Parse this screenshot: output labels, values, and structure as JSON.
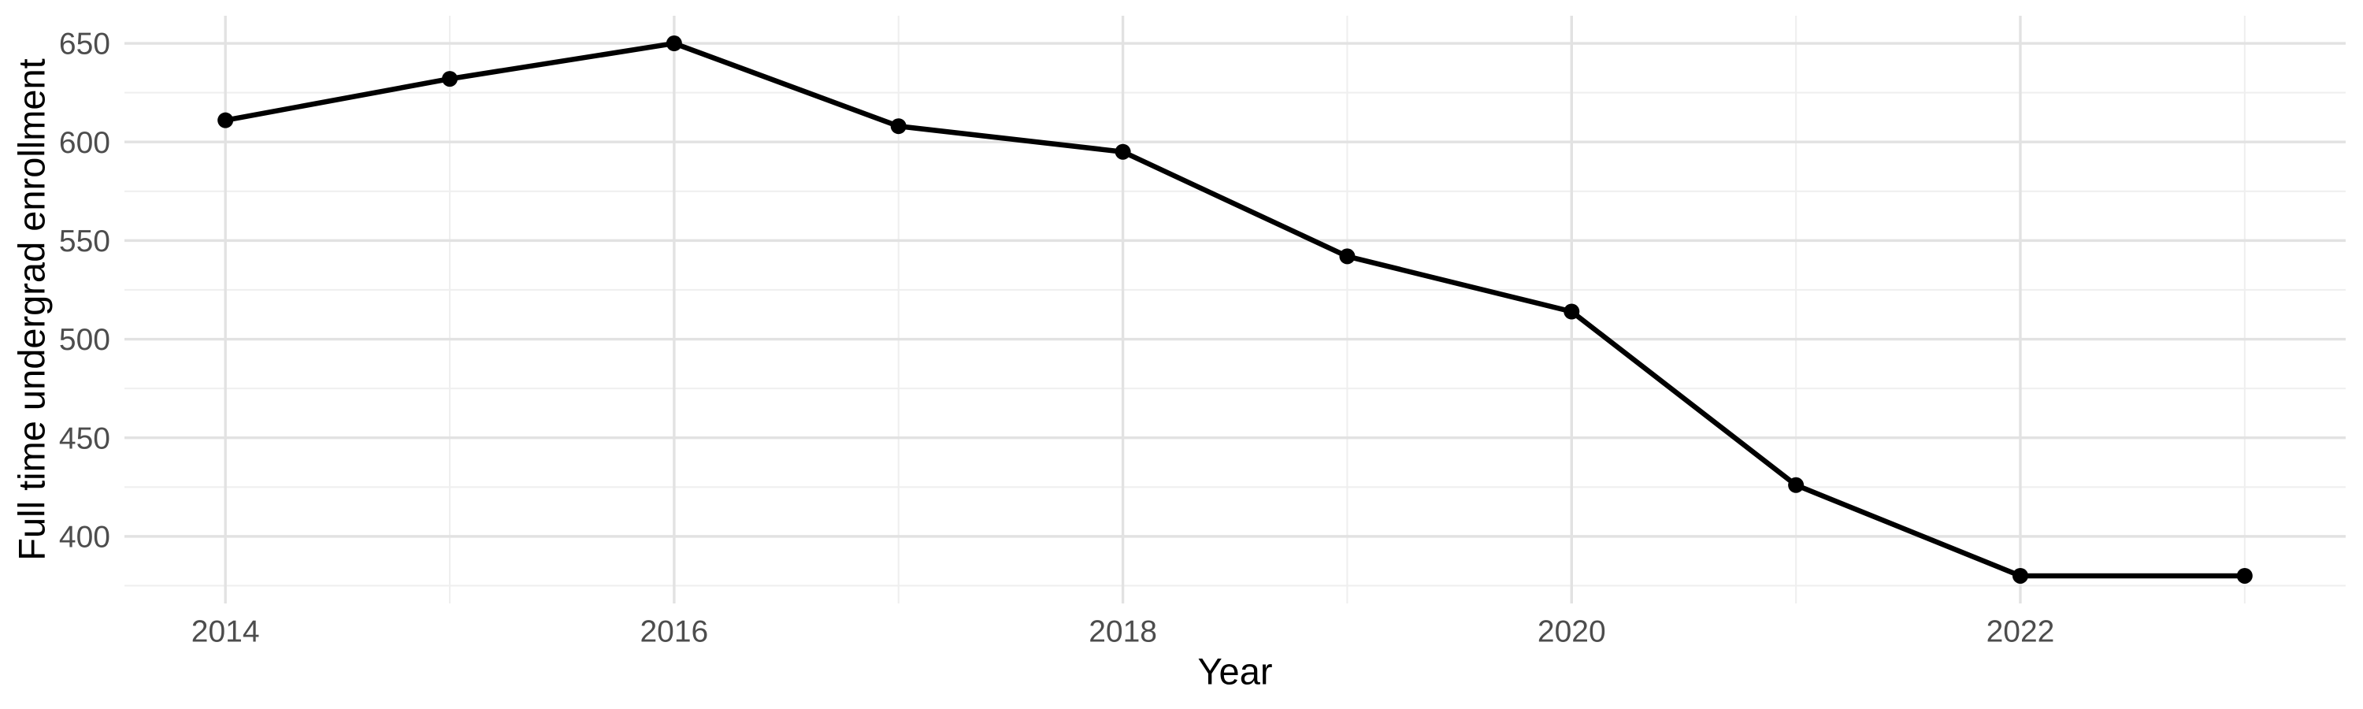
{
  "chart_data": {
    "type": "line",
    "title": "",
    "xlabel": "Year",
    "ylabel": "Full time undergrad enrollment",
    "x": [
      2014,
      2015,
      2016,
      2017,
      2018,
      2019,
      2020,
      2021,
      2022,
      2023
    ],
    "series": [
      {
        "name": "Full time undergrad enrollment",
        "values": [
          611,
          632,
          650,
          608,
          595,
          542,
          514,
          426,
          380,
          380
        ]
      }
    ],
    "x_ticks": [
      2014,
      2016,
      2018,
      2020,
      2022
    ],
    "x_tick_labels": [
      "2014",
      "2016",
      "2018",
      "2020",
      "2022"
    ],
    "x_minor_ticks": [
      2015,
      2017,
      2019,
      2021,
      2023
    ],
    "y_ticks": [
      400,
      450,
      500,
      550,
      600,
      650
    ],
    "y_tick_labels": [
      "400",
      "450",
      "500",
      "550",
      "600",
      "650"
    ],
    "y_minor_ticks": [
      375,
      425,
      475,
      525,
      575,
      625
    ],
    "xlim": [
      2013.55,
      2023.45
    ],
    "ylim": [
      366,
      664
    ],
    "grid": "major+minor",
    "legend": "none",
    "marker": "circle",
    "marker_radius": 10,
    "colors": {
      "line": "#000000",
      "point": "#000000",
      "grid_major": "#e2e2e2",
      "grid_minor": "#efefef",
      "tick_label": "#4d4d4d",
      "axis_title": "#000000",
      "background": "#ffffff"
    }
  }
}
